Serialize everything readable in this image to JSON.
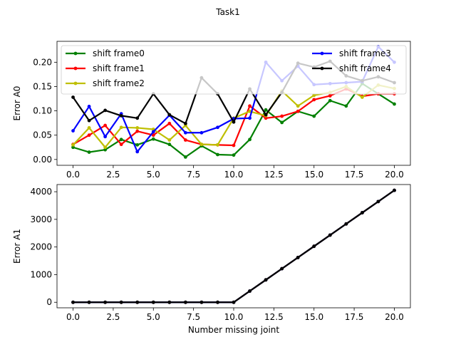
{
  "figure": {
    "title": "Task1"
  },
  "chart_data": [
    {
      "type": "line",
      "title": "",
      "xlabel": "",
      "ylabel": "Error A0",
      "xlim": [
        -1.0,
        21.0
      ],
      "ylim": [
        -0.012,
        0.243
      ],
      "xticks": [
        0,
        2.5,
        5,
        7.5,
        10,
        12.5,
        15,
        17.5,
        20
      ],
      "xtick_labels": [
        "0.0",
        "2.5",
        "5.0",
        "7.5",
        "10.0",
        "12.5",
        "15.0",
        "17.5",
        "20.0"
      ],
      "yticks": [
        0,
        0.05,
        0.1,
        0.15,
        0.2
      ],
      "ytick_labels": [
        "0.00",
        "0.05",
        "0.10",
        "0.15",
        "0.20"
      ],
      "legend": {
        "placement": "top",
        "columns": 2
      },
      "x": [
        0,
        1,
        2,
        3,
        4,
        5,
        6,
        7,
        8,
        9,
        10,
        11,
        12,
        13,
        14,
        15,
        16,
        17,
        18,
        19,
        20
      ],
      "series": [
        {
          "name": "shift frame0",
          "color": "#008000",
          "values": [
            0.025,
            0.015,
            0.02,
            0.041,
            0.03,
            0.042,
            0.031,
            0.005,
            0.028,
            0.01,
            0.009,
            0.041,
            0.102,
            0.076,
            0.099,
            0.089,
            0.121,
            0.11,
            0.156,
            0.135,
            0.114
          ]
        },
        {
          "name": "shift frame1",
          "color": "#ff0000",
          "values": [
            0.031,
            0.05,
            0.07,
            0.031,
            0.058,
            0.05,
            0.074,
            0.04,
            0.031,
            0.03,
            0.029,
            0.11,
            0.085,
            0.089,
            0.099,
            0.123,
            0.131,
            0.145,
            0.13,
            0.135,
            0.135
          ]
        },
        {
          "name": "shift frame2",
          "color": "#bfbf00",
          "values": [
            0.03,
            0.065,
            0.025,
            0.066,
            0.065,
            0.062,
            0.04,
            0.07,
            0.031,
            0.03,
            0.085,
            0.099,
            0.09,
            0.141,
            0.11,
            0.132,
            0.138,
            0.15,
            0.128,
            0.153,
            0.146
          ]
        },
        {
          "name": "shift frame3",
          "color": "#0000ff",
          "values": [
            0.059,
            0.109,
            0.047,
            0.094,
            0.016,
            0.057,
            0.091,
            0.055,
            0.055,
            0.066,
            0.084,
            0.085,
            0.2,
            0.162,
            0.192,
            0.154,
            0.156,
            0.158,
            0.16,
            0.232,
            0.2
          ]
        },
        {
          "name": "shift frame4",
          "color": "#000000",
          "values": [
            0.128,
            0.08,
            0.101,
            0.09,
            0.085,
            0.135,
            0.092,
            0.074,
            0.168,
            0.135,
            0.077,
            0.145,
            0.092,
            0.138,
            0.198,
            0.19,
            0.202,
            0.172,
            0.162,
            0.17,
            0.158
          ]
        }
      ]
    },
    {
      "type": "line",
      "title": "",
      "xlabel": "Number missing joint",
      "ylabel": "Error A1",
      "xlim": [
        -1.0,
        21.0
      ],
      "ylim": [
        -200,
        4260
      ],
      "xticks": [
        0,
        2.5,
        5,
        7.5,
        10,
        12.5,
        15,
        17.5,
        20
      ],
      "xtick_labels": [
        "0.0",
        "2.5",
        "5.0",
        "7.5",
        "10.0",
        "12.5",
        "15.0",
        "17.5",
        "20.0"
      ],
      "yticks": [
        0,
        1000,
        2000,
        3000,
        4000
      ],
      "ytick_labels": [
        "0",
        "1000",
        "2000",
        "3000",
        "4000"
      ],
      "x": [
        0,
        1,
        2,
        3,
        4,
        5,
        6,
        7,
        8,
        9,
        10,
        11,
        12,
        13,
        14,
        15,
        16,
        17,
        18,
        19,
        20
      ],
      "series": [
        {
          "name": "shift frame0",
          "color": "#008000",
          "values": [
            0,
            0,
            0,
            0,
            0,
            0,
            0,
            0,
            0,
            0,
            0,
            405,
            810,
            1215,
            1620,
            2025,
            2430,
            2835,
            3240,
            3645,
            4050
          ]
        },
        {
          "name": "shift frame1",
          "color": "#ff0000",
          "values": [
            0,
            0,
            0,
            0,
            0,
            0,
            0,
            0,
            0,
            0,
            0,
            405,
            810,
            1215,
            1620,
            2025,
            2430,
            2835,
            3240,
            3645,
            4050
          ]
        },
        {
          "name": "shift frame2",
          "color": "#bfbf00",
          "values": [
            0,
            0,
            0,
            0,
            0,
            0,
            0,
            0,
            0,
            0,
            0,
            405,
            810,
            1215,
            1620,
            2025,
            2430,
            2835,
            3240,
            3645,
            4050
          ]
        },
        {
          "name": "shift frame3",
          "color": "#0000ff",
          "values": [
            0,
            0,
            0,
            0,
            0,
            0,
            0,
            0,
            0,
            0,
            0,
            405,
            810,
            1215,
            1620,
            2025,
            2430,
            2835,
            3240,
            3645,
            4050
          ]
        },
        {
          "name": "shift frame4",
          "color": "#000000",
          "values": [
            0,
            0,
            0,
            0,
            0,
            0,
            0,
            0,
            0,
            0,
            0,
            405,
            810,
            1215,
            1620,
            2025,
            2430,
            2835,
            3240,
            3645,
            4050
          ]
        }
      ]
    }
  ]
}
